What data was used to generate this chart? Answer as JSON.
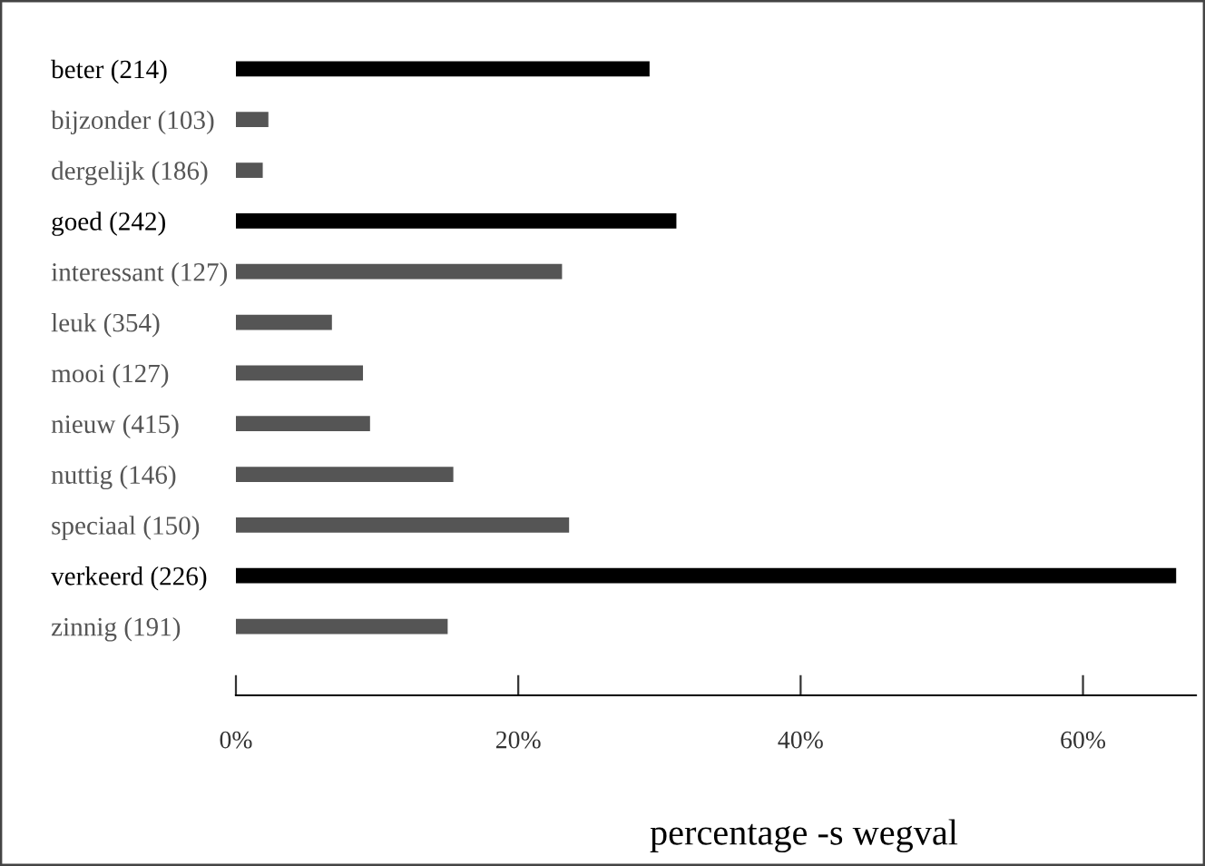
{
  "chart_data": {
    "type": "bar",
    "orientation": "horizontal",
    "xlabel": "percentage -s wegval",
    "categories": [
      "beter (214)",
      "bijzonder (103)",
      "dergelijk (186)",
      "goed (242)",
      "interessant (127)",
      "leuk (354)",
      "mooi (127)",
      "nieuw (415)",
      "nuttig (146)",
      "speciaal (150)",
      "verkeerd (226)",
      "zinnig (191)"
    ],
    "values": [
      29.3,
      2.3,
      1.9,
      31.2,
      23.1,
      6.8,
      9.0,
      9.5,
      15.4,
      23.6,
      66.6,
      15.0
    ],
    "colors": [
      "#000000",
      "#555555",
      "#555555",
      "#000000",
      "#555555",
      "#555555",
      "#555555",
      "#555555",
      "#555555",
      "#555555",
      "#000000",
      "#555555"
    ],
    "xlim": [
      0,
      68
    ],
    "xticks": [
      {
        "value": 0,
        "label": "0%"
      },
      {
        "value": 20,
        "label": "20%"
      },
      {
        "value": 40,
        "label": "40%"
      },
      {
        "value": 60,
        "label": "60%"
      }
    ],
    "grid": false
  }
}
